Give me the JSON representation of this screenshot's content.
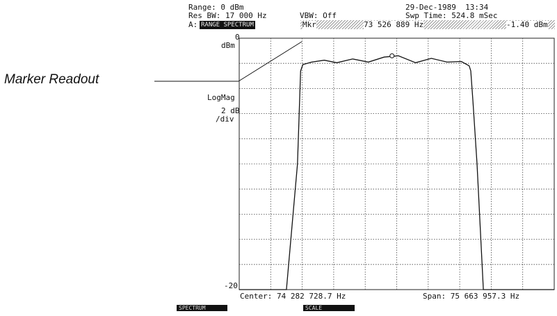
{
  "callout": {
    "label": "Marker Readout"
  },
  "header": {
    "range": "Range: 0 dBm",
    "res_bw": "Res BW: 17 000 Hz",
    "vbw": "VBW: Off",
    "date_time": "29-Dec-1989  13:34",
    "sweep_time": "Swp Time: 524.8 mSec",
    "trace_prefix": "A:",
    "trace_name": "RANGE SPECTRUM",
    "marker_label": "Mkr",
    "marker_freq": "73 526 889 Hz",
    "marker_level": "-1.40 dBm"
  },
  "axes": {
    "top_value": "0",
    "top_unit": "dBm",
    "scale_type": "LogMag",
    "scale_per_div": "2 dB",
    "per_div_label": "/div",
    "bottom_value": "-20"
  },
  "footer": {
    "center": "Center: 74 282 728.7 Hz",
    "span": "Span: 75 663 957.3 Hz",
    "softkey_left": "SPECTRUM",
    "softkey_right": "SCALE"
  },
  "chart_data": {
    "type": "line",
    "ylim": [
      -20,
      0
    ],
    "grid": true,
    "x_divisions": 10,
    "y_divisions": 10,
    "center_hz": 74282728.7,
    "span_hz": 75663957.3,
    "series": [
      {
        "x": [
          0.0,
          1.5,
          1.85,
          1.95,
          2.02,
          2.3,
          2.7,
          3.1,
          3.6,
          4.1,
          4.6,
          5.05,
          5.6,
          6.1,
          6.6,
          7.05,
          7.3,
          7.35,
          7.42,
          7.55,
          7.75,
          8.0,
          10.0
        ],
        "y": [
          -20,
          -20,
          -10,
          -2.6,
          -2.1,
          -1.9,
          -1.75,
          -1.95,
          -1.65,
          -1.9,
          -1.5,
          -1.4,
          -1.95,
          -1.6,
          -1.9,
          -1.85,
          -2.2,
          -2.6,
          -5,
          -10,
          -20,
          -20,
          -20
        ]
      }
    ],
    "marker": {
      "x": 4.85,
      "y": -1.4
    }
  }
}
